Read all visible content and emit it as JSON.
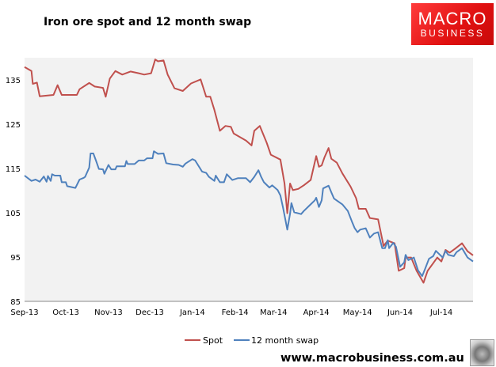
{
  "title": "Iron ore spot and 12 month swap",
  "logo": {
    "line1": "MACRO",
    "line2": "BUSINESS",
    "color": "#e8201f"
  },
  "website": "www.macrobusiness.com.au",
  "wolf_icon": "wolf-head-icon",
  "colors": {
    "spot": "#c0504d",
    "swap": "#4f81bd",
    "plot_bg": "#f2f2f2"
  },
  "chart_data": {
    "type": "line",
    "title": "Iron ore spot and 12 month swap",
    "xlim": [
      "2013-09-01",
      "2014-07-24"
    ],
    "ylim": [
      85,
      140
    ],
    "yticks": [
      85,
      95,
      105,
      115,
      125,
      135
    ],
    "xticks": [
      {
        "date": "2013-09-01",
        "label": "Sep-13"
      },
      {
        "date": "2013-10-01",
        "label": "Oct-13"
      },
      {
        "date": "2013-11-01",
        "label": "Nov-13"
      },
      {
        "date": "2013-12-01",
        "label": "Dec-13"
      },
      {
        "date": "2014-01-01",
        "label": "Jan-14"
      },
      {
        "date": "2014-02-01",
        "label": "Feb-14"
      },
      {
        "date": "2014-03-01",
        "label": "Mar-14"
      },
      {
        "date": "2014-04-01",
        "label": "Apr-14"
      },
      {
        "date": "2014-05-01",
        "label": "May-14"
      },
      {
        "date": "2014-06-01",
        "label": "Jun-14"
      },
      {
        "date": "2014-07-01",
        "label": "Jul-14"
      }
    ],
    "grid": false,
    "legend_placement": "bottom",
    "series": [
      {
        "name": "Spot",
        "color": "#c0504d",
        "points": [
          [
            "2013-09-01",
            137.9
          ],
          [
            "2013-09-06",
            137.0
          ],
          [
            "2013-09-07",
            134.1
          ],
          [
            "2013-09-10",
            134.4
          ],
          [
            "2013-09-12",
            131.3
          ],
          [
            "2013-09-22",
            131.6
          ],
          [
            "2013-09-25",
            133.8
          ],
          [
            "2013-09-28",
            131.6
          ],
          [
            "2013-10-09",
            131.6
          ],
          [
            "2013-10-11",
            132.9
          ],
          [
            "2013-10-18",
            134.3
          ],
          [
            "2013-10-22",
            133.5
          ],
          [
            "2013-10-28",
            133.2
          ],
          [
            "2013-10-30",
            131.2
          ],
          [
            "2013-11-02",
            135.3
          ],
          [
            "2013-11-06",
            137.0
          ],
          [
            "2013-11-11",
            136.2
          ],
          [
            "2013-11-17",
            136.9
          ],
          [
            "2013-11-23",
            136.5
          ],
          [
            "2013-11-27",
            136.2
          ],
          [
            "2013-12-02",
            136.5
          ],
          [
            "2013-12-05",
            139.6
          ],
          [
            "2013-12-07",
            139.2
          ],
          [
            "2013-12-11",
            139.4
          ],
          [
            "2013-12-14",
            136.2
          ],
          [
            "2013-12-19",
            133.1
          ],
          [
            "2013-12-25",
            132.5
          ],
          [
            "2013-12-31",
            134.2
          ],
          [
            "2014-01-07",
            135.1
          ],
          [
            "2014-01-11",
            131.2
          ],
          [
            "2014-01-14",
            131.2
          ],
          [
            "2014-01-17",
            128.2
          ],
          [
            "2014-01-21",
            123.5
          ],
          [
            "2014-01-25",
            124.6
          ],
          [
            "2014-01-29",
            124.4
          ],
          [
            "2014-01-31",
            122.9
          ],
          [
            "2014-02-09",
            121.3
          ],
          [
            "2014-02-13",
            120.2
          ],
          [
            "2014-02-15",
            123.5
          ],
          [
            "2014-02-19",
            124.6
          ],
          [
            "2014-02-24",
            120.8
          ],
          [
            "2014-02-27",
            118.1
          ],
          [
            "2014-03-06",
            117.0
          ],
          [
            "2014-03-09",
            111.6
          ],
          [
            "2014-03-11",
            104.9
          ],
          [
            "2014-03-13",
            111.6
          ],
          [
            "2014-03-15",
            110.1
          ],
          [
            "2014-03-19",
            110.4
          ],
          [
            "2014-03-23",
            111.2
          ],
          [
            "2014-03-28",
            112.4
          ],
          [
            "2014-04-01",
            117.8
          ],
          [
            "2014-04-03",
            115.4
          ],
          [
            "2014-04-05",
            115.7
          ],
          [
            "2014-04-07",
            117.5
          ],
          [
            "2014-04-10",
            119.6
          ],
          [
            "2014-04-12",
            117.2
          ],
          [
            "2014-04-16",
            116.3
          ],
          [
            "2014-04-20",
            113.9
          ],
          [
            "2014-04-26",
            110.9
          ],
          [
            "2014-04-30",
            108.3
          ],
          [
            "2014-05-02",
            105.9
          ],
          [
            "2014-05-07",
            105.9
          ],
          [
            "2014-05-10",
            103.8
          ],
          [
            "2014-05-16",
            103.5
          ],
          [
            "2014-05-19",
            99.0
          ],
          [
            "2014-05-20",
            97.5
          ],
          [
            "2014-05-23",
            98.7
          ],
          [
            "2014-05-28",
            98.1
          ],
          [
            "2014-05-31",
            91.9
          ],
          [
            "2014-06-04",
            92.5
          ],
          [
            "2014-06-05",
            94.9
          ],
          [
            "2014-06-09",
            94.9
          ],
          [
            "2014-06-13",
            91.9
          ],
          [
            "2014-06-18",
            89.2
          ],
          [
            "2014-06-21",
            91.9
          ],
          [
            "2014-06-25",
            93.6
          ],
          [
            "2014-06-28",
            94.9
          ],
          [
            "2014-07-01",
            94.0
          ],
          [
            "2014-07-04",
            96.6
          ],
          [
            "2014-07-07",
            96.0
          ],
          [
            "2014-07-11",
            96.9
          ],
          [
            "2014-07-16",
            98.1
          ],
          [
            "2014-07-20",
            96.3
          ],
          [
            "2014-07-24",
            95.4
          ]
        ]
      },
      {
        "name": "12 month swap",
        "color": "#4f81bd",
        "points": [
          [
            "2013-09-01",
            113.4
          ],
          [
            "2013-09-06",
            112.2
          ],
          [
            "2013-09-09",
            112.5
          ],
          [
            "2013-09-12",
            112.0
          ],
          [
            "2013-09-15",
            113.2
          ],
          [
            "2013-09-17",
            112.0
          ],
          [
            "2013-09-18",
            113.3
          ],
          [
            "2013-09-20",
            112.2
          ],
          [
            "2013-09-21",
            113.7
          ],
          [
            "2013-09-23",
            113.4
          ],
          [
            "2013-09-27",
            113.4
          ],
          [
            "2013-09-28",
            111.9
          ],
          [
            "2013-10-01",
            111.9
          ],
          [
            "2013-10-02",
            111.0
          ],
          [
            "2013-10-08",
            110.6
          ],
          [
            "2013-10-11",
            112.5
          ],
          [
            "2013-10-14",
            112.9
          ],
          [
            "2013-10-15",
            113.1
          ],
          [
            "2013-10-18",
            115.2
          ],
          [
            "2013-10-19",
            118.4
          ],
          [
            "2013-10-21",
            118.4
          ],
          [
            "2013-10-23",
            116.7
          ],
          [
            "2013-10-25",
            114.9
          ],
          [
            "2013-10-28",
            114.8
          ],
          [
            "2013-10-29",
            113.8
          ],
          [
            "2013-11-01",
            115.8
          ],
          [
            "2013-11-03",
            114.8
          ],
          [
            "2013-11-06",
            114.8
          ],
          [
            "2013-11-07",
            115.5
          ],
          [
            "2013-11-13",
            115.5
          ],
          [
            "2013-11-14",
            116.7
          ],
          [
            "2013-11-15",
            116.0
          ],
          [
            "2013-11-20",
            116.0
          ],
          [
            "2013-11-23",
            116.8
          ],
          [
            "2013-11-27",
            116.8
          ],
          [
            "2013-11-29",
            117.3
          ],
          [
            "2013-12-03",
            117.3
          ],
          [
            "2013-12-04",
            118.9
          ],
          [
            "2013-12-07",
            118.3
          ],
          [
            "2013-12-11",
            118.4
          ],
          [
            "2013-12-13",
            116.2
          ],
          [
            "2013-12-18",
            115.9
          ],
          [
            "2013-12-22",
            115.8
          ],
          [
            "2013-12-25",
            115.4
          ],
          [
            "2013-12-27",
            116.1
          ],
          [
            "2014-01-01",
            117.1
          ],
          [
            "2014-01-03",
            116.8
          ],
          [
            "2014-01-05",
            115.8
          ],
          [
            "2014-01-08",
            114.3
          ],
          [
            "2014-01-11",
            114.0
          ],
          [
            "2014-01-13",
            113.1
          ],
          [
            "2014-01-17",
            112.2
          ],
          [
            "2014-01-18",
            113.4
          ],
          [
            "2014-01-21",
            111.9
          ],
          [
            "2014-01-24",
            111.9
          ],
          [
            "2014-01-26",
            113.7
          ],
          [
            "2014-01-30",
            112.4
          ],
          [
            "2014-02-03",
            112.8
          ],
          [
            "2014-02-09",
            112.8
          ],
          [
            "2014-02-12",
            111.9
          ],
          [
            "2014-02-15",
            113.1
          ],
          [
            "2014-02-18",
            114.6
          ],
          [
            "2014-02-20",
            113.1
          ],
          [
            "2014-02-22",
            111.9
          ],
          [
            "2014-02-26",
            110.7
          ],
          [
            "2014-02-28",
            111.2
          ],
          [
            "2014-03-04",
            110.1
          ],
          [
            "2014-03-06",
            108.9
          ],
          [
            "2014-03-08",
            106.0
          ],
          [
            "2014-03-11",
            101.2
          ],
          [
            "2014-03-13",
            104.8
          ],
          [
            "2014-03-14",
            107.2
          ],
          [
            "2014-03-16",
            105.1
          ],
          [
            "2014-03-21",
            104.7
          ],
          [
            "2014-03-23",
            105.4
          ],
          [
            "2014-03-27",
            106.6
          ],
          [
            "2014-03-31",
            107.8
          ],
          [
            "2014-04-01",
            108.4
          ],
          [
            "2014-04-03",
            106.3
          ],
          [
            "2014-04-05",
            107.8
          ],
          [
            "2014-04-06",
            110.5
          ],
          [
            "2014-04-10",
            111.1
          ],
          [
            "2014-04-12",
            109.6
          ],
          [
            "2014-04-14",
            108.2
          ],
          [
            "2014-04-20",
            106.9
          ],
          [
            "2014-04-24",
            105.4
          ],
          [
            "2014-04-27",
            103.0
          ],
          [
            "2014-04-29",
            101.5
          ],
          [
            "2014-05-01",
            100.6
          ],
          [
            "2014-05-03",
            101.2
          ],
          [
            "2014-05-07",
            101.5
          ],
          [
            "2014-05-10",
            99.4
          ],
          [
            "2014-05-13",
            100.3
          ],
          [
            "2014-05-16",
            100.6
          ],
          [
            "2014-05-19",
            97.0
          ],
          [
            "2014-05-21",
            97.0
          ],
          [
            "2014-05-23",
            98.8
          ],
          [
            "2014-05-24",
            97.0
          ],
          [
            "2014-05-27",
            98.2
          ],
          [
            "2014-05-29",
            97.3
          ],
          [
            "2014-06-01",
            92.8
          ],
          [
            "2014-06-04",
            93.8
          ],
          [
            "2014-06-05",
            95.5
          ],
          [
            "2014-06-07",
            94.3
          ],
          [
            "2014-06-11",
            94.9
          ],
          [
            "2014-06-14",
            92.0
          ],
          [
            "2014-06-17",
            90.7
          ],
          [
            "2014-06-19",
            92.2
          ],
          [
            "2014-06-22",
            94.6
          ],
          [
            "2014-06-25",
            95.2
          ],
          [
            "2014-06-27",
            96.4
          ],
          [
            "2014-06-30",
            95.5
          ],
          [
            "2014-07-02",
            94.9
          ],
          [
            "2014-07-04",
            96.4
          ],
          [
            "2014-07-06",
            95.5
          ],
          [
            "2014-07-10",
            95.2
          ],
          [
            "2014-07-12",
            96.1
          ],
          [
            "2014-07-16",
            97.0
          ],
          [
            "2014-07-20",
            94.9
          ],
          [
            "2014-07-24",
            94.0
          ]
        ]
      }
    ]
  }
}
